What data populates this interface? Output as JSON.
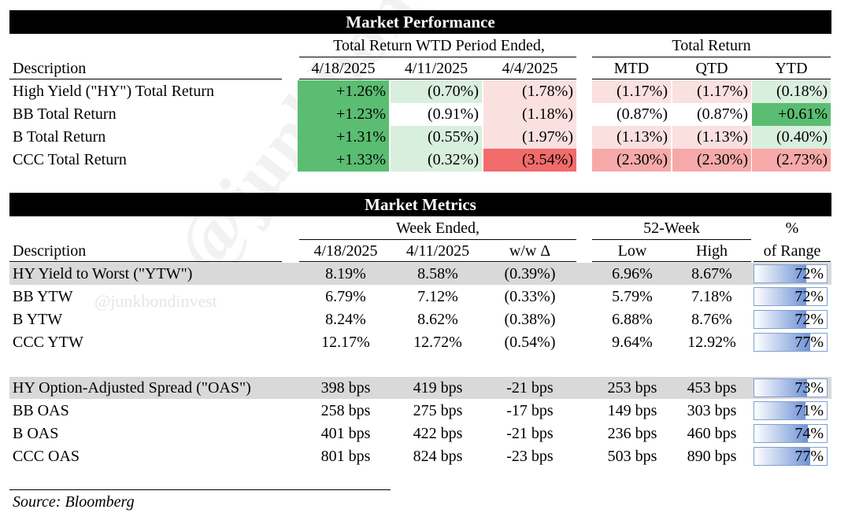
{
  "watermark": {
    "small": "@junkbondinvest",
    "large": "@junkbondinvest"
  },
  "colors": {
    "green_strong": "#5bbd72",
    "green_mid": "#9fd6ad",
    "green_light": "#d9efde",
    "red_strong": "#f26b6b",
    "red_mid": "#f7a9a9",
    "red_light": "#fbe0e0",
    "bar_blue": "#6f93d6",
    "shade": "#d9d9d9"
  },
  "performance": {
    "title": "Market Performance",
    "group_wtd": "Total Return WTD Period Ended,",
    "group_total": "Total Return",
    "desc_header": "Description",
    "columns": [
      "4/18/2025",
      "4/11/2025",
      "4/4/2025",
      "MTD",
      "QTD",
      "YTD"
    ],
    "rows": [
      {
        "label": "High Yield (\"HY\") Total Return",
        "values": [
          "+1.26%",
          "(0.70%)",
          "(1.78%)",
          "(1.17%)",
          "(1.17%)",
          "(0.18%)"
        ],
        "tones": [
          "gs",
          "gl",
          "rl",
          "rl",
          "rl",
          "gl"
        ]
      },
      {
        "label": "BB Total Return",
        "values": [
          "+1.23%",
          "(0.91%)",
          "(1.18%)",
          "(0.87%)",
          "(0.87%)",
          "+0.61%"
        ],
        "tones": [
          "gs",
          "wh",
          "rl",
          "wh",
          "wh",
          "gs"
        ]
      },
      {
        "label": "B Total Return",
        "values": [
          "+1.31%",
          "(0.55%)",
          "(1.97%)",
          "(1.13%)",
          "(1.13%)",
          "(0.40%)"
        ],
        "tones": [
          "gs",
          "gl",
          "rl",
          "rl",
          "rl",
          "gl"
        ]
      },
      {
        "label": "CCC Total Return",
        "values": [
          "+1.33%",
          "(0.32%)",
          "(3.54%)",
          "(2.30%)",
          "(2.30%)",
          "(2.73%)"
        ],
        "tones": [
          "gs",
          "gl",
          "rs",
          "rm",
          "rm",
          "rm"
        ]
      }
    ]
  },
  "metrics": {
    "title": "Market Metrics",
    "group_week": "Week Ended,",
    "group_52": "52-Week",
    "pct_line1": "%",
    "pct_line2": "of Range",
    "desc_header": "Description",
    "columns": [
      "4/18/2025",
      "4/11/2025",
      "w/w Δ",
      "Low",
      "High"
    ],
    "ytw_rows": [
      {
        "label": "HY Yield to Worst (\"YTW\")",
        "values": [
          "8.19%",
          "8.58%",
          "(0.39%)",
          "6.96%",
          "8.67%"
        ],
        "pct": "72%",
        "pct_value": 72,
        "shaded": true
      },
      {
        "label": "BB YTW",
        "values": [
          "6.79%",
          "7.12%",
          "(0.33%)",
          "5.79%",
          "7.18%"
        ],
        "pct": "72%",
        "pct_value": 72,
        "shaded": false
      },
      {
        "label": "B YTW",
        "values": [
          "8.24%",
          "8.62%",
          "(0.38%)",
          "6.88%",
          "8.76%"
        ],
        "pct": "72%",
        "pct_value": 72,
        "shaded": false
      },
      {
        "label": "CCC YTW",
        "values": [
          "12.17%",
          "12.72%",
          "(0.54%)",
          "9.64%",
          "12.92%"
        ],
        "pct": "77%",
        "pct_value": 77,
        "shaded": false
      }
    ],
    "oas_rows": [
      {
        "label": "HY Option-Adjusted Spread (\"OAS\")",
        "values": [
          "398 bps",
          "419 bps",
          "-21 bps",
          "253 bps",
          "453 bps"
        ],
        "pct": "73%",
        "pct_value": 73,
        "shaded": true
      },
      {
        "label": "BB OAS",
        "values": [
          "258 bps",
          "275 bps",
          "-17 bps",
          "149 bps",
          "303 bps"
        ],
        "pct": "71%",
        "pct_value": 71,
        "shaded": false
      },
      {
        "label": "B OAS",
        "values": [
          "401 bps",
          "422 bps",
          "-21 bps",
          "236 bps",
          "460 bps"
        ],
        "pct": "74%",
        "pct_value": 74,
        "shaded": false
      },
      {
        "label": "CCC OAS",
        "values": [
          "801 bps",
          "824 bps",
          "-23 bps",
          "503 bps",
          "890 bps"
        ],
        "pct": "77%",
        "pct_value": 77,
        "shaded": false
      }
    ]
  },
  "source": "Source: Bloomberg"
}
